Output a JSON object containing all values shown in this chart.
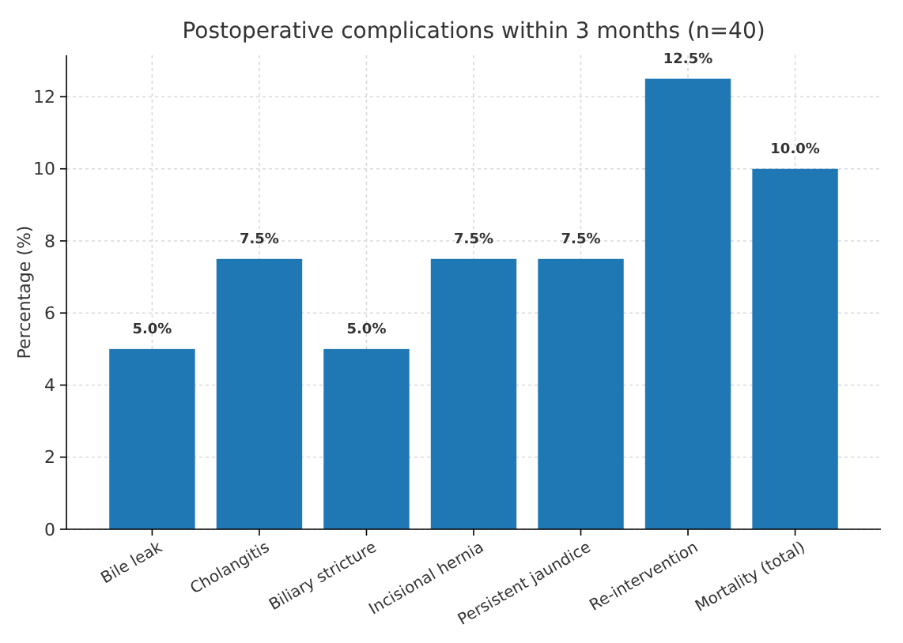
{
  "chart_data": {
    "type": "bar",
    "title": "Postoperative complications within 3 months (n=40)",
    "ylabel": "Percentage (%)",
    "categories": [
      "Bile leak",
      "Cholangitis",
      "Biliary stricture",
      "Incisional hernia",
      "Persistent jaundice",
      "Re-intervention",
      "Mortality (total)"
    ],
    "values": [
      5,
      7.5,
      5,
      7.5,
      7.5,
      12.5,
      10
    ],
    "value_labels": [
      "5.0%",
      "7.5%",
      "5.0%",
      "7.5%",
      "7.5%",
      "12.5%",
      "10.0%"
    ],
    "color": "#1f77b4",
    "ylim": [
      0,
      13.15
    ],
    "yticks": [
      0,
      2,
      4,
      6,
      8,
      10,
      12
    ],
    "grid": true
  }
}
